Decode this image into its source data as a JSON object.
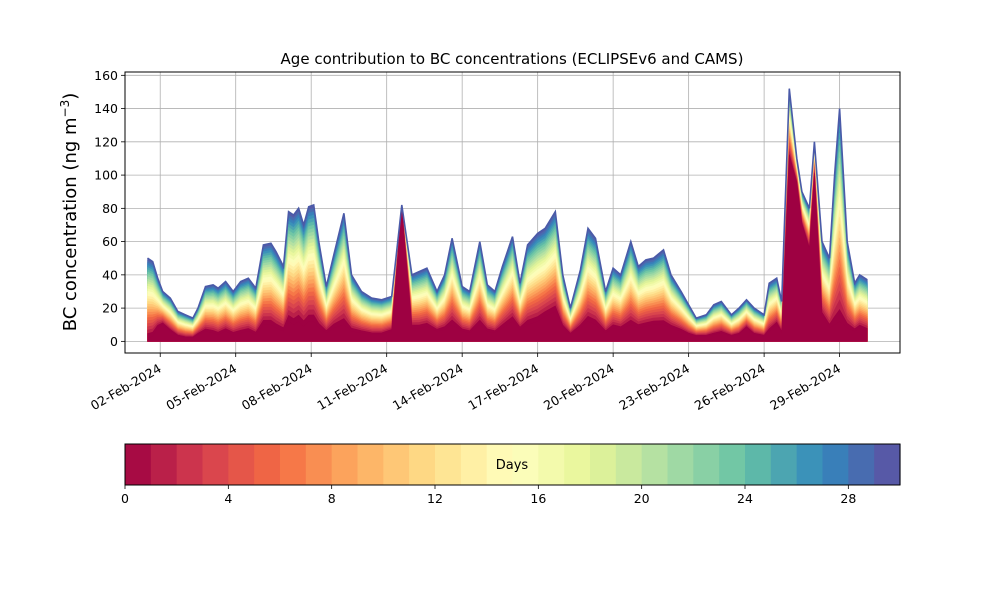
{
  "chart_data": {
    "type": "area",
    "title": "Age contribution to BC concentrations (ECLIPSEv6 and CAMS)",
    "ylabel_text": "BC concentration (ng m",
    "ylabel_sup": "−3",
    "ylabel_close": ")",
    "xlabel": "",
    "x_ticks": [
      {
        "day": 2,
        "label": "02-Feb-2024"
      },
      {
        "day": 5,
        "label": "05-Feb-2024"
      },
      {
        "day": 8,
        "label": "08-Feb-2024"
      },
      {
        "day": 11,
        "label": "11-Feb-2024"
      },
      {
        "day": 14,
        "label": "14-Feb-2024"
      },
      {
        "day": 17,
        "label": "17-Feb-2024"
      },
      {
        "day": 20,
        "label": "20-Feb-2024"
      },
      {
        "day": 23,
        "label": "23-Feb-2024"
      },
      {
        "day": 26,
        "label": "26-Feb-2024"
      },
      {
        "day": 29,
        "label": "29-Feb-2024"
      }
    ],
    "xlim_days": [
      0.6,
      31.4
    ],
    "ylim": [
      -7,
      162
    ],
    "y_ticks": [
      0,
      20,
      40,
      60,
      80,
      100,
      120,
      140,
      160
    ],
    "grid": true,
    "series_layers": "stacked contributions by age in days, 0 (bottom) to 30 (top)",
    "total_days": [
      1.5,
      1.7,
      1.9,
      2.1,
      2.4,
      2.7,
      3.0,
      3.3,
      3.5,
      3.8,
      4.1,
      4.3,
      4.6,
      4.9,
      5.2,
      5.5,
      5.8,
      6.1,
      6.4,
      6.6,
      6.9,
      7.1,
      7.3,
      7.5,
      7.7,
      7.9,
      8.1,
      8.3,
      8.6,
      8.9,
      9.3,
      9.6,
      10.0,
      10.4,
      10.8,
      11.2,
      11.6,
      12.0,
      12.3,
      12.6,
      13.0,
      13.3,
      13.6,
      14.0,
      14.3,
      14.7,
      15.0,
      15.3,
      15.6,
      16.0,
      16.3,
      16.6,
      17.0,
      17.3,
      17.7,
      18.0,
      18.3,
      18.7,
      19.0,
      19.3,
      19.7,
      20.0,
      20.3,
      20.7,
      21.0,
      21.3,
      21.6,
      22.0,
      22.3,
      22.7,
      23.0,
      23.3,
      23.7,
      24.0,
      24.3,
      24.7,
      25.0,
      25.3,
      25.6,
      26.0,
      26.2,
      26.5,
      26.7,
      27.0,
      27.3,
      27.5,
      27.8,
      28.0,
      28.3,
      28.6,
      28.8,
      29.0,
      29.3,
      29.6,
      29.8,
      30.1
    ],
    "total_values": [
      50,
      48,
      38,
      30,
      26,
      18,
      16,
      14,
      20,
      33,
      34,
      32,
      36,
      30,
      36,
      38,
      32,
      58,
      59,
      54,
      45,
      78,
      76,
      80,
      70,
      81,
      82,
      60,
      33,
      52,
      77,
      40,
      30,
      26,
      25,
      27,
      82,
      40,
      42,
      44,
      30,
      40,
      62,
      33,
      30,
      60,
      34,
      30,
      45,
      63,
      35,
      58,
      65,
      68,
      78,
      40,
      20,
      43,
      68,
      62,
      30,
      44,
      40,
      60,
      45,
      49,
      50,
      55,
      40,
      30,
      22,
      14,
      16,
      22,
      24,
      16,
      20,
      25,
      20,
      16,
      35,
      38,
      24,
      152,
      110,
      90,
      80,
      120,
      60,
      50,
      100,
      140,
      60,
      35,
      40,
      37
    ],
    "young_values": [
      2,
      3,
      8,
      10,
      6,
      3,
      2,
      2,
      4,
      6,
      5,
      4,
      6,
      4,
      5,
      6,
      4,
      10,
      10,
      8,
      6,
      12,
      10,
      12,
      9,
      12,
      12,
      8,
      5,
      8,
      10,
      6,
      5,
      4,
      4,
      6,
      80,
      8,
      8,
      9,
      6,
      7,
      10,
      6,
      5,
      10,
      6,
      5,
      8,
      12,
      7,
      10,
      12,
      15,
      18,
      8,
      4,
      8,
      12,
      10,
      5,
      8,
      7,
      10,
      8,
      9,
      10,
      10,
      8,
      6,
      4,
      3,
      3,
      4,
      5,
      3,
      4,
      8,
      4,
      3,
      6,
      10,
      5,
      110,
      95,
      70,
      55,
      100,
      15,
      8,
      10,
      12,
      8,
      6,
      8,
      6
    ],
    "colorbar": {
      "label": "Days",
      "min": 0,
      "max": 30,
      "ticks": [
        0,
        4,
        8,
        12,
        16,
        20,
        24,
        28
      ],
      "segments": 30,
      "colormap": "Spectral",
      "colors": [
        "#9e0142",
        "#d53e4f",
        "#f46d43",
        "#fdae61",
        "#fee08b",
        "#ffffbf",
        "#e6f598",
        "#abdda4",
        "#66c2a5",
        "#3288bd",
        "#5e4fa2"
      ]
    }
  }
}
